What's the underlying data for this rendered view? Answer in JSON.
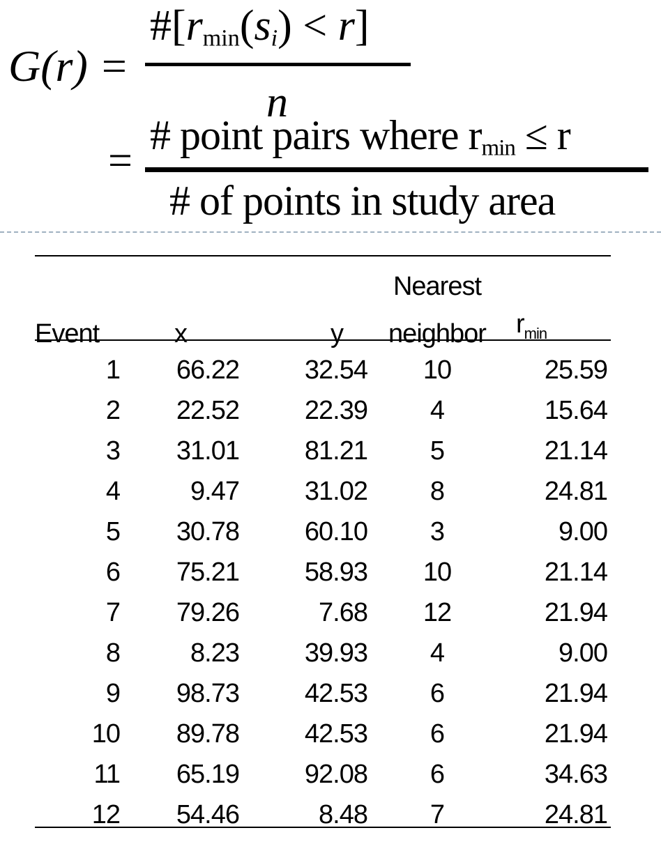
{
  "formula": {
    "lhs": "G(r) =",
    "line1": {
      "numerator_prefix": "#[",
      "r": "r",
      "r_sub": "min",
      "s_open": "(",
      "s": "s",
      "s_sub": "i",
      "s_close": ")",
      "lt": " < ",
      "r2": "r",
      "close": "]",
      "denominator": "n"
    },
    "line2": {
      "equals": "=",
      "numerator_text": "# point pairs where r",
      "numerator_sub": "min",
      "numerator_tail": " ≤ r",
      "denominator": "# of points in study area"
    }
  },
  "table": {
    "headers": {
      "event": "Event",
      "x": "x",
      "y": "y",
      "nn_top": "Nearest",
      "nn_bottom": "neighbor",
      "rmin": "r",
      "rmin_sub": "min"
    },
    "rows": [
      [
        "1",
        "66.22",
        "32.54",
        "10",
        "25.59"
      ],
      [
        "2",
        "22.52",
        "22.39",
        "4",
        "15.64"
      ],
      [
        "3",
        "31.01",
        "81.21",
        "5",
        "21.14"
      ],
      [
        "4",
        "9.47",
        "31.02",
        "8",
        "24.81"
      ],
      [
        "5",
        "30.78",
        "60.10",
        "3",
        "9.00"
      ],
      [
        "6",
        "75.21",
        "58.93",
        "10",
        "21.14"
      ],
      [
        "7",
        "79.26",
        "7.68",
        "12",
        "21.94"
      ],
      [
        "8",
        "8.23",
        "39.93",
        "4",
        "9.00"
      ],
      [
        "9",
        "98.73",
        "42.53",
        "6",
        "21.94"
      ],
      [
        "10",
        "89.78",
        "42.53",
        "6",
        "21.94"
      ],
      [
        "11",
        "65.19",
        "92.08",
        "6",
        "34.63"
      ],
      [
        "12",
        "54.46",
        "8.48",
        "7",
        "24.81"
      ]
    ]
  },
  "colors": {
    "divider": "#9fb0c0",
    "text": "#000000"
  }
}
